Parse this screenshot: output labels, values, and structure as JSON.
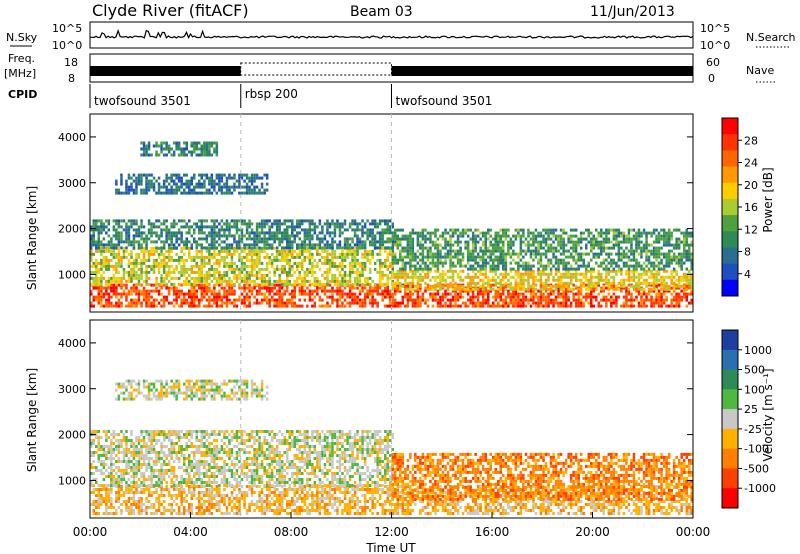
{
  "header": {
    "station": "Clyde River (fitACF)",
    "beam": "Beam 03",
    "date": "11/Jun/2013"
  },
  "strips": {
    "nsky_label": "N.Sky",
    "nsearch_label": "N.Search",
    "nsky_ticks": [
      "10^5",
      "10^0"
    ],
    "nsearch_ticks": [
      "10^5",
      "10^0"
    ],
    "freq_label_1": "Freq.",
    "freq_label_2": "[MHz]",
    "freq_ticks": [
      "18",
      "8"
    ],
    "nave_ticks": [
      "60",
      "0"
    ],
    "nave_label": "Nave",
    "cpid_label": "CPID"
  },
  "cpid_segments": [
    {
      "name": "twofsound 3501",
      "start_hour": 0,
      "end_hour": 6
    },
    {
      "name": "rbsp 200",
      "start_hour": 6,
      "end_hour": 12
    },
    {
      "name": "twofsound 3501",
      "start_hour": 12,
      "end_hour": 24
    }
  ],
  "axes": {
    "x_ticks": [
      "00:00",
      "04:00",
      "08:00",
      "12:00",
      "16:00",
      "20:00",
      "00:00"
    ],
    "x_label": "Time UT",
    "y_label": "Slant Range [km]",
    "y_ticks": [
      "1000",
      "2000",
      "3000",
      "4000"
    ],
    "y_range": [
      180,
      4500
    ]
  },
  "colorbars": {
    "power": {
      "label": "Power [dB]",
      "ticks": [
        "28",
        "24",
        "20",
        "16",
        "12",
        "8",
        "4"
      ],
      "colors": [
        "#ff0000",
        "#ff3300",
        "#ff6600",
        "#ff9900",
        "#ffcc00",
        "#aacc33",
        "#4fa040",
        "#2e8b57",
        "#2a6f8f",
        "#1f4fbf",
        "#0000ff"
      ]
    },
    "velocity": {
      "label": "Velocity [m s⁻¹]",
      "ticks": [
        "1000",
        "500",
        "100",
        "25",
        "-25",
        "-100",
        "-500",
        "-1000"
      ],
      "colors": [
        "#1f3fa0",
        "#2a6fb0",
        "#2e8b57",
        "#4fb840",
        "#c8c8c8",
        "#ffb000",
        "#ff8000",
        "#ff4000",
        "#ff0000"
      ]
    }
  },
  "chart_data": [
    {
      "type": "heatmap",
      "title": "Power",
      "x_range_hours": [
        0,
        24
      ],
      "y_range_km": [
        180,
        4500
      ],
      "bands": [
        {
          "x_hours": [
            0,
            24
          ],
          "y_km": [
            300,
            800
          ],
          "level": 26
        },
        {
          "x_hours": [
            0,
            12
          ],
          "y_km": [
            800,
            1600
          ],
          "level": 16
        },
        {
          "x_hours": [
            0,
            12
          ],
          "y_km": [
            1600,
            2200
          ],
          "level": 8
        },
        {
          "x_hours": [
            12,
            24
          ],
          "y_km": [
            700,
            1100
          ],
          "level": 18
        },
        {
          "x_hours": [
            12,
            24
          ],
          "y_km": [
            1100,
            2000
          ],
          "level": 10
        },
        {
          "x_hours": [
            1,
            7
          ],
          "y_km": [
            2800,
            3200
          ],
          "level": 6
        },
        {
          "x_hours": [
            2,
            5
          ],
          "y_km": [
            3600,
            3900
          ],
          "level": 8
        }
      ]
    },
    {
      "type": "heatmap",
      "title": "Velocity",
      "x_range_hours": [
        0,
        24
      ],
      "y_range_km": [
        180,
        4500
      ],
      "bands": [
        {
          "x_hours": [
            0,
            24
          ],
          "y_km": [
            300,
            900
          ],
          "value": -100
        },
        {
          "x_hours": [
            0,
            12
          ],
          "y_km": [
            900,
            2100
          ],
          "value": -25
        },
        {
          "x_hours": [
            12,
            24
          ],
          "y_km": [
            600,
            1600
          ],
          "value": -300
        },
        {
          "x_hours": [
            1,
            7
          ],
          "y_km": [
            2800,
            3200
          ],
          "value": 0
        }
      ]
    }
  ]
}
